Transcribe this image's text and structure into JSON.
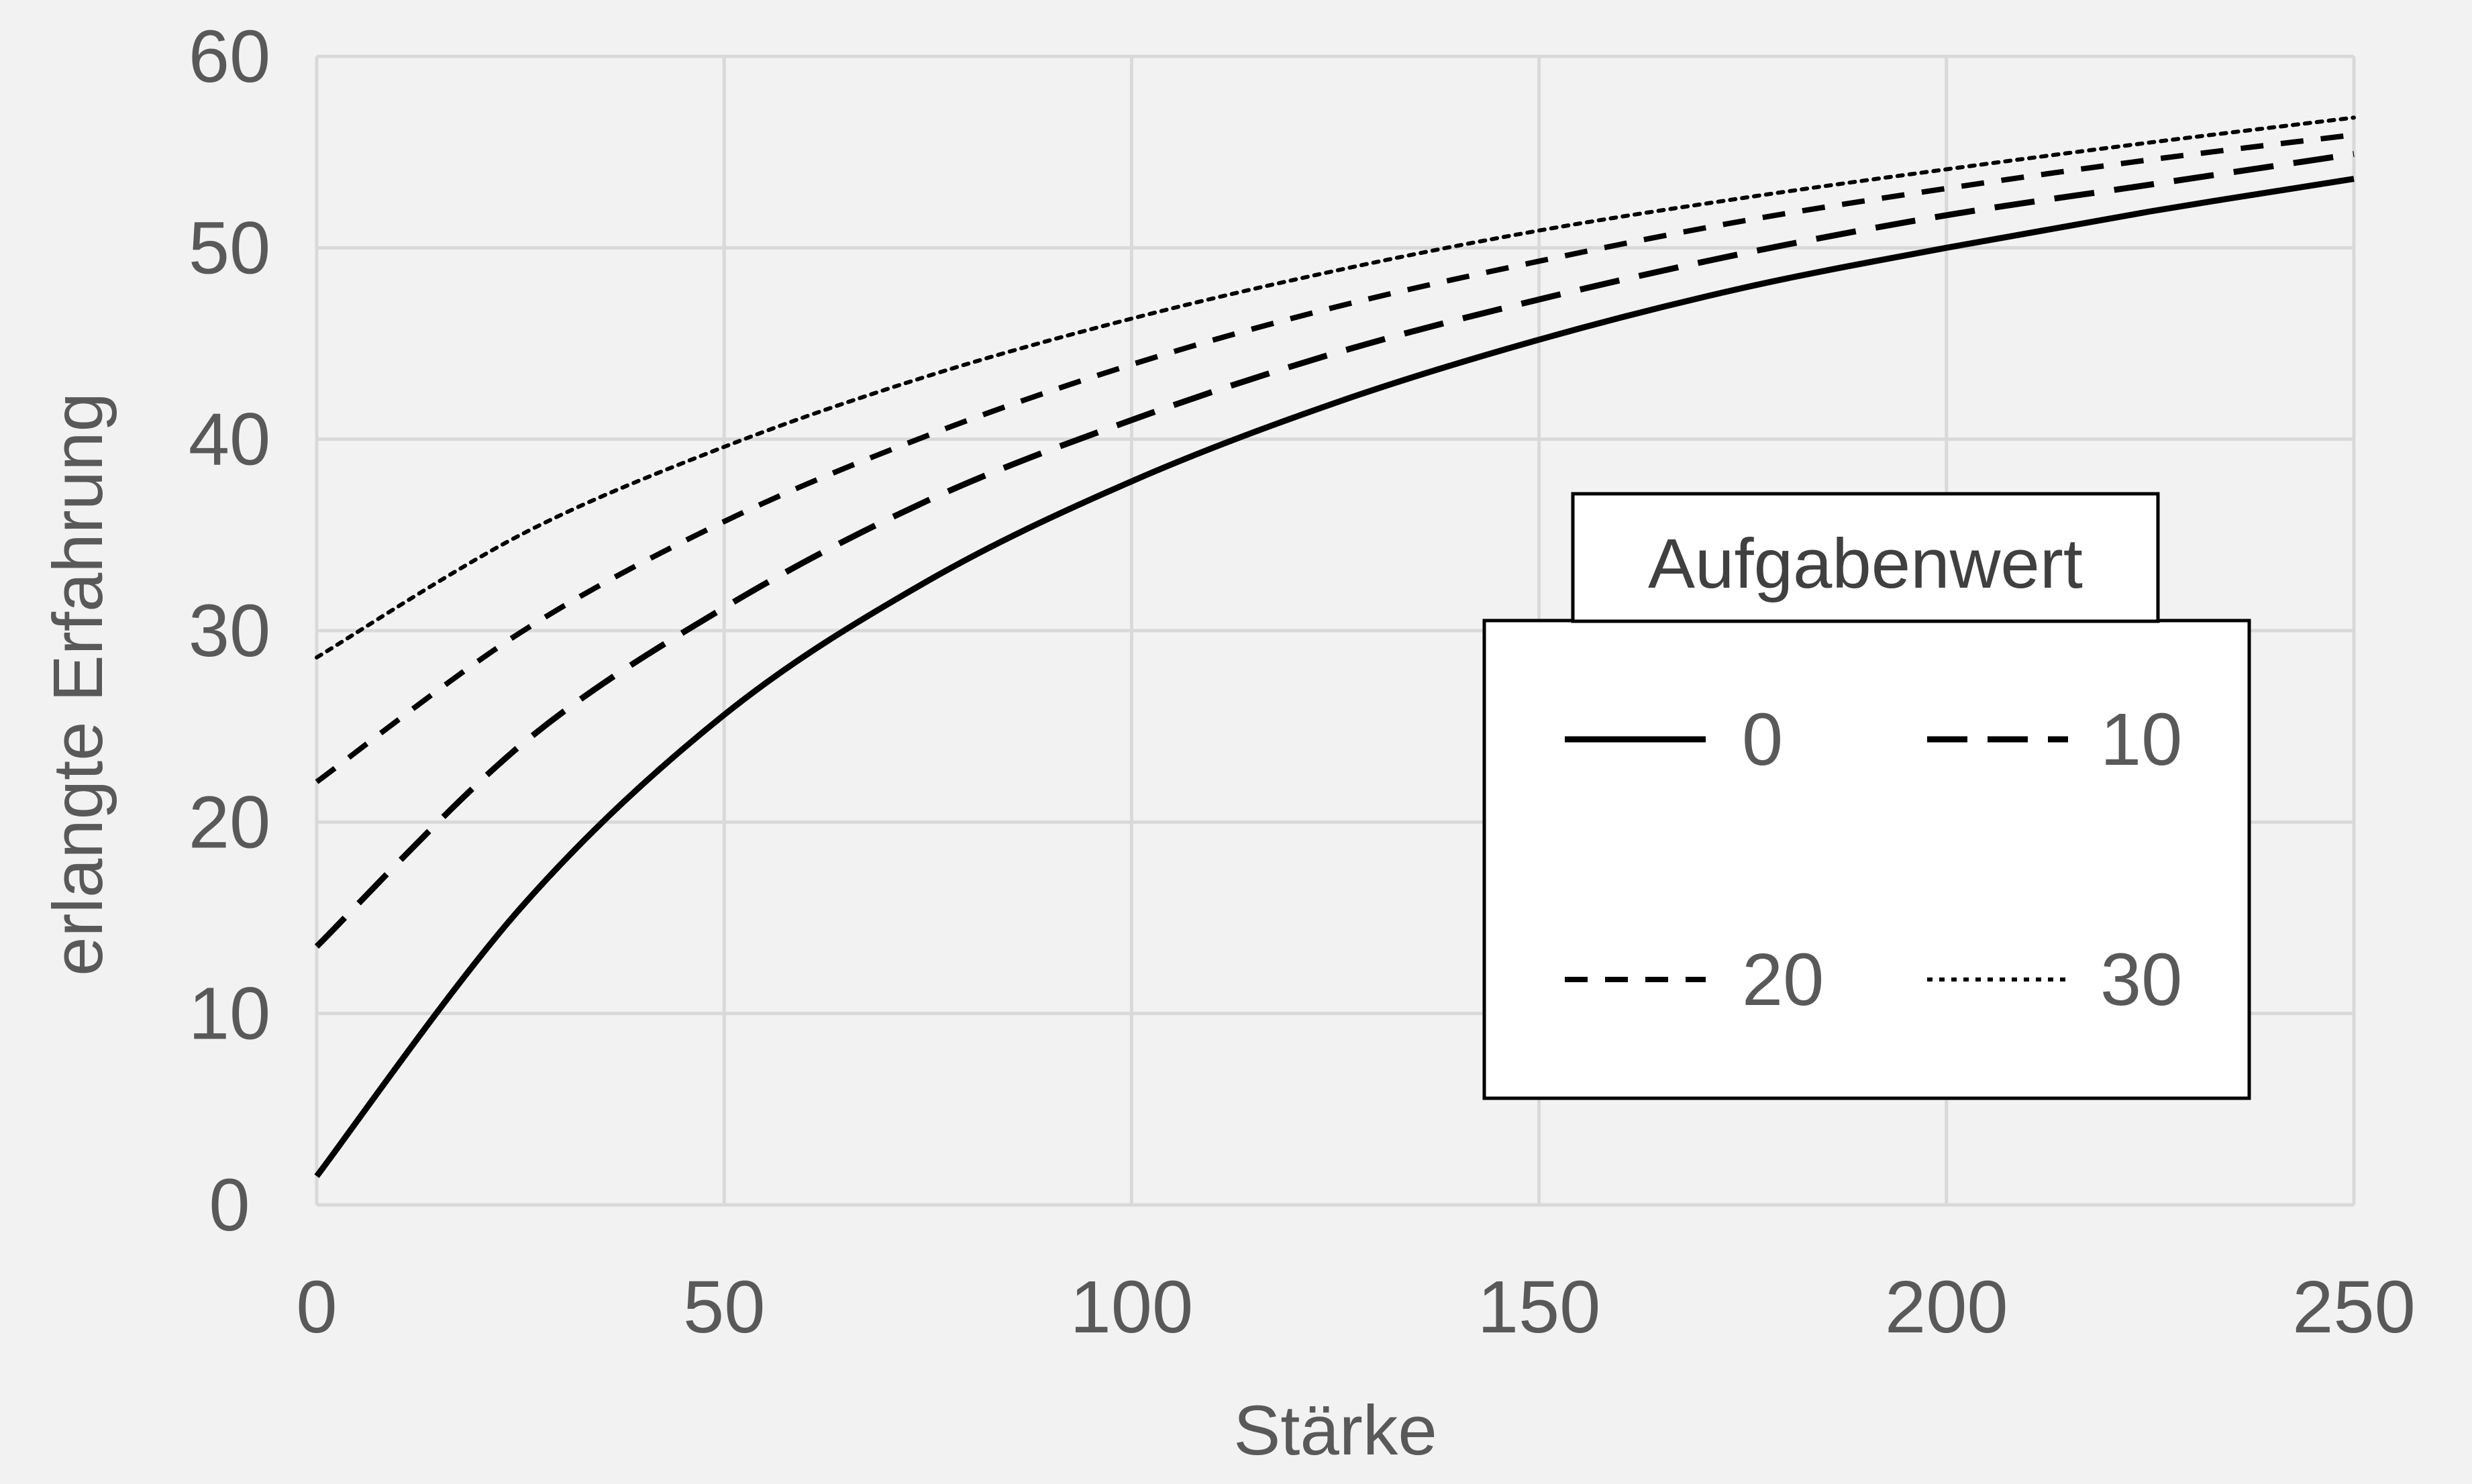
{
  "chart_data": {
    "type": "line",
    "title": "",
    "xlabel": "Stärke",
    "ylabel": "erlangte Erfahrung",
    "xlim": [
      0,
      250
    ],
    "ylim": [
      0,
      60
    ],
    "x_ticks": [
      "0",
      "50",
      "100",
      "150",
      "200",
      "250"
    ],
    "y_ticks": [
      "0",
      "10",
      "20",
      "30",
      "40",
      "50",
      "60"
    ],
    "grid": true,
    "legend_title": "Aufgabenwert",
    "legend_position": "right",
    "x": [
      0,
      25,
      50,
      75,
      100,
      125,
      150,
      175,
      200,
      225,
      250
    ],
    "series": [
      {
        "name": "0",
        "style": "solid",
        "values": [
          1.5,
          15.5,
          25.6,
          32.6,
          37.8,
          41.9,
          45.2,
          47.9,
          50.0,
          51.9,
          53.6
        ]
      },
      {
        "name": "10",
        "style": "dashed",
        "values": [
          13.5,
          24.0,
          31.2,
          36.8,
          41.0,
          44.5,
          47.3,
          49.7,
          51.7,
          53.3,
          54.9
        ]
      },
      {
        "name": "20",
        "style": "short-dashed",
        "values": [
          22.1,
          29.9,
          35.7,
          40.2,
          43.9,
          46.9,
          49.3,
          51.4,
          53.1,
          54.6,
          55.9
        ]
      },
      {
        "name": "30",
        "style": "dotted",
        "values": [
          28.6,
          35.0,
          39.6,
          43.3,
          46.3,
          48.8,
          50.9,
          52.6,
          54.1,
          55.5,
          56.8
        ]
      }
    ],
    "colors": {
      "line": "#000000",
      "grid": "#d9d9d9",
      "background": "#f2f2f2",
      "text": "#595959"
    }
  }
}
